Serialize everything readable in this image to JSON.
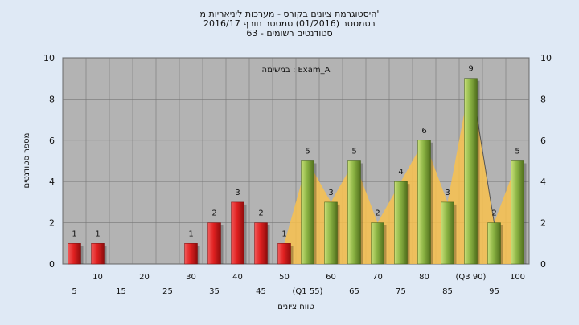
{
  "titles": {
    "line1": "היסטוגרמת ציונים בקורס - מערכות ליניאריות מ'",
    "line2": "בסמסטר  (01/2016)  סמסטר חורף  2016/17",
    "line3": "סטודנטים רשומים - 63"
  },
  "chart_data": {
    "type": "bar",
    "title": "היסטוגרמת ציונים בקורס - מערכות ליניאריות מ'",
    "subtitle": "בסמסטר  (01/2016)  סמסטר חורף  2016/17 | סטודנטים רשומים - 63",
    "xlabel": "טווח ציונים",
    "ylabel": "מספר סטודנטים",
    "annotation": "במשימה : Exam_A",
    "ylim": [
      0,
      10
    ],
    "yticks": [
      0,
      2,
      4,
      6,
      8,
      10
    ],
    "categories": [
      "5",
      "10",
      "15",
      "20",
      "25",
      "30",
      "35",
      "40",
      "45",
      "50",
      "55",
      "60",
      "65",
      "70",
      "75",
      "80",
      "85",
      "90",
      "95",
      "100"
    ],
    "x_tick_labels": [
      "5",
      "10",
      "15",
      "20",
      "25",
      "30",
      "35",
      "40",
      "45",
      "50",
      "(Q1 55)",
      "60",
      "65",
      "70",
      "75",
      "80",
      "85",
      "(Q3 90)",
      "95",
      "100"
    ],
    "values": [
      1,
      1,
      0,
      0,
      0,
      1,
      2,
      3,
      2,
      1,
      5,
      3,
      5,
      2,
      4,
      6,
      3,
      9,
      2,
      5
    ],
    "bar_labels": [
      "1",
      "1",
      "",
      "",
      "",
      "1",
      "2",
      "3",
      "2",
      "1",
      "5",
      "3",
      "5",
      "2",
      "4",
      "6",
      "3",
      "9",
      "2",
      "5"
    ],
    "series_colors": {
      "below_55": "#d41c1c",
      "from_55": "#7fa83a"
    },
    "area_overlay_color": "#f8c14d",
    "plot_background": "#b3b3b3",
    "grid": true
  }
}
